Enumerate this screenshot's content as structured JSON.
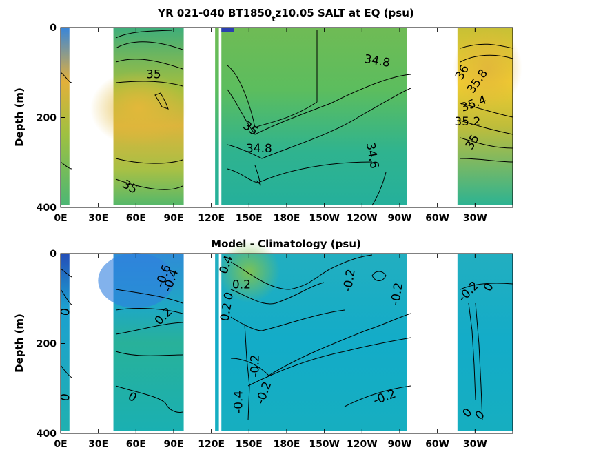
{
  "chart_data": [
    {
      "type": "heatmap",
      "title_parts": [
        "YR 021-040 BT1850",
        "t",
        "z10.05 SALT at EQ (psu)"
      ],
      "ylabel": "Depth (m)",
      "xlim_deg": [
        0,
        360
      ],
      "ylim": [
        0,
        400
      ],
      "y_ticks": [
        0,
        200,
        400
      ],
      "x_ticks": [
        {
          "deg": 0,
          "label": "0E"
        },
        {
          "deg": 30,
          "label": "30E"
        },
        {
          "deg": 60,
          "label": "60E"
        },
        {
          "deg": 90,
          "label": "90E"
        },
        {
          "deg": 120,
          "label": "120E"
        },
        {
          "deg": 150,
          "label": "150E"
        },
        {
          "deg": 180,
          "label": "180E"
        },
        {
          "deg": 210,
          "label": "150W"
        },
        {
          "deg": 240,
          "label": "120W"
        },
        {
          "deg": 270,
          "label": "90W"
        },
        {
          "deg": 300,
          "label": "60W"
        },
        {
          "deg": 330,
          "label": "30W"
        }
      ],
      "ocean_segments": [
        {
          "x0": 0,
          "x1": 7
        },
        {
          "x0": 42,
          "x1": 98
        },
        {
          "x0": 123,
          "x1": 126
        },
        {
          "x0": 128,
          "x1": 276
        },
        {
          "x0": 316,
          "x1": 360
        }
      ],
      "contour_labels": [
        {
          "text": "35",
          "x": 74,
          "y": 105,
          "rot": 0
        },
        {
          "text": "34.8",
          "x": 252,
          "y": 75,
          "rot": 10
        },
        {
          "text": "36",
          "x": 320,
          "y": 100,
          "rot": -60
        },
        {
          "text": "35.8",
          "x": 332,
          "y": 120,
          "rot": -55
        },
        {
          "text": "35.4",
          "x": 329,
          "y": 170,
          "rot": -20
        },
        {
          "text": "35.2",
          "x": 324,
          "y": 210,
          "rot": 0
        },
        {
          "text": "35",
          "x": 328,
          "y": 255,
          "rot": -60
        },
        {
          "text": "35",
          "x": 151,
          "y": 225,
          "rot": 35
        },
        {
          "text": "34.8",
          "x": 158,
          "y": 270,
          "rot": 0
        },
        {
          "text": "34.6",
          "x": 248,
          "y": 285,
          "rot": 80
        },
        {
          "text": "35",
          "x": 55,
          "y": 355,
          "rot": 30
        }
      ]
    },
    {
      "type": "heatmap",
      "title": "Model - Climatology (psu)",
      "ylabel": "Depth (m)",
      "xlim_deg": [
        0,
        360
      ],
      "ylim": [
        0,
        400
      ],
      "y_ticks": [
        0,
        200,
        400
      ],
      "x_ticks": [
        {
          "deg": 0,
          "label": "0E"
        },
        {
          "deg": 30,
          "label": "30E"
        },
        {
          "deg": 60,
          "label": "60E"
        },
        {
          "deg": 90,
          "label": "90E"
        },
        {
          "deg": 120,
          "label": "120E"
        },
        {
          "deg": 150,
          "label": "150E"
        },
        {
          "deg": 180,
          "label": "180E"
        },
        {
          "deg": 210,
          "label": "150W"
        },
        {
          "deg": 240,
          "label": "120W"
        },
        {
          "deg": 270,
          "label": "90W"
        },
        {
          "deg": 300,
          "label": "60W"
        },
        {
          "deg": 330,
          "label": "30W"
        }
      ],
      "ocean_segments": [
        {
          "x0": 0,
          "x1": 7
        },
        {
          "x0": 42,
          "x1": 98
        },
        {
          "x0": 123,
          "x1": 126
        },
        {
          "x0": 128,
          "x1": 276
        },
        {
          "x0": 316,
          "x1": 360
        }
      ],
      "contour_labels": [
        {
          "text": "-0.4",
          "x": 88,
          "y": 60,
          "rot": -70
        },
        {
          "text": "-0.6",
          "x": 82,
          "y": 50,
          "rot": -70
        },
        {
          "text": "0.2",
          "x": 82,
          "y": 140,
          "rot": -45
        },
        {
          "text": "0",
          "x": 4,
          "y": 130,
          "rot": -80
        },
        {
          "text": "0",
          "x": 4,
          "y": 320,
          "rot": -80
        },
        {
          "text": "0",
          "x": 57,
          "y": 320,
          "rot": 30
        },
        {
          "text": "0.4",
          "x": 132,
          "y": 25,
          "rot": -70
        },
        {
          "text": "0.2",
          "x": 144,
          "y": 70,
          "rot": 0
        },
        {
          "text": "0",
          "x": 134,
          "y": 95,
          "rot": -70
        },
        {
          "text": "0.2",
          "x": 132,
          "y": 130,
          "rot": -80
        },
        {
          "text": "-0.2",
          "x": 155,
          "y": 250,
          "rot": -90
        },
        {
          "text": "-0.4",
          "x": 142,
          "y": 330,
          "rot": -90
        },
        {
          "text": "-0.2",
          "x": 162,
          "y": 310,
          "rot": -70
        },
        {
          "text": "-0.2",
          "x": 230,
          "y": 60,
          "rot": -80
        },
        {
          "text": "-0.2",
          "x": 268,
          "y": 90,
          "rot": -80
        },
        {
          "text": "-0.2",
          "x": 258,
          "y": 320,
          "rot": -20
        },
        {
          "text": "-0.2",
          "x": 325,
          "y": 85,
          "rot": -45
        },
        {
          "text": "0",
          "x": 341,
          "y": 75,
          "rot": -60
        },
        {
          "text": "0",
          "x": 324,
          "y": 355,
          "rot": -45
        },
        {
          "text": "0",
          "x": 334,
          "y": 360,
          "rot": -45
        }
      ]
    }
  ]
}
